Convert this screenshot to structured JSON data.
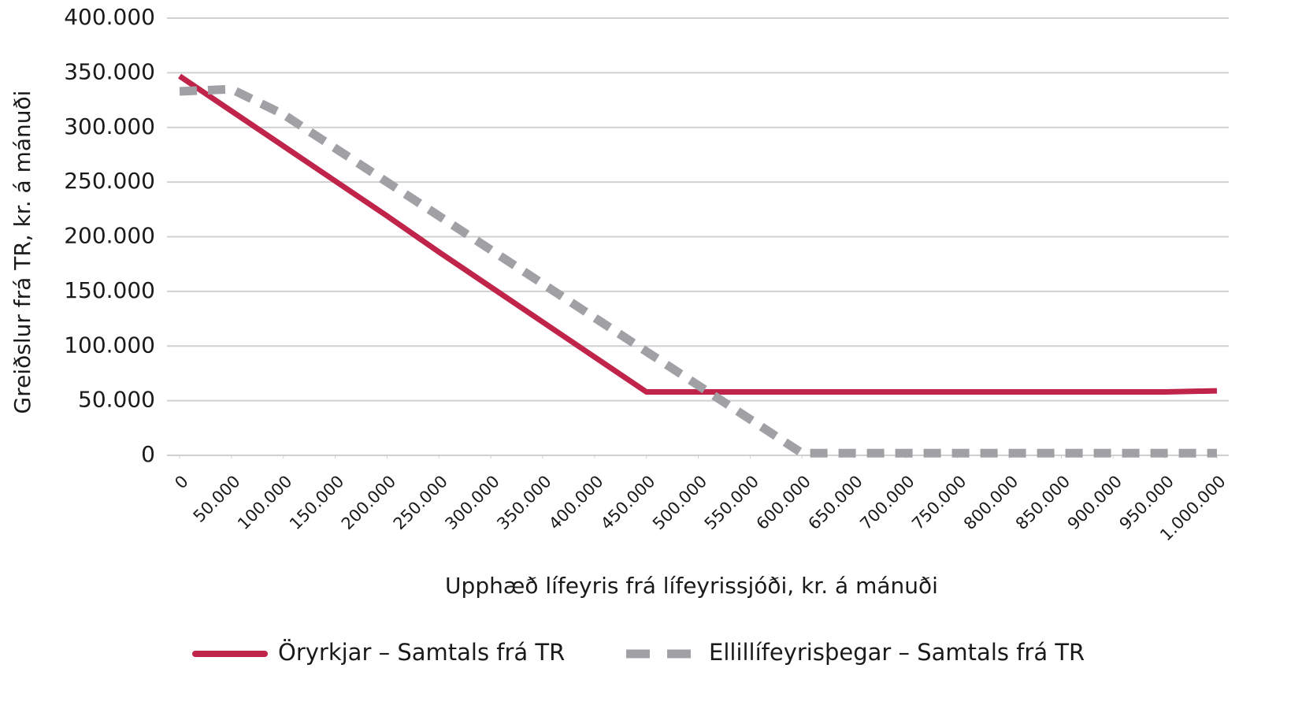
{
  "chart_data": {
    "type": "line",
    "xlabel": "Upphæð lífeyris frá lífeyrissjóði, kr. á mánuði",
    "ylabel": "Greiðslur frá TR, kr. á mánuði",
    "x": [
      0,
      50000,
      100000,
      150000,
      200000,
      250000,
      300000,
      350000,
      400000,
      450000,
      500000,
      550000,
      600000,
      650000,
      700000,
      750000,
      800000,
      850000,
      900000,
      950000,
      1000000
    ],
    "series": [
      {
        "name": "Öryrkjar – Samtals frá TR",
        "color": "#c0244a",
        "dash": false,
        "values": [
          347000,
          315000,
          283000,
          251000,
          219000,
          186000,
          154000,
          122000,
          90000,
          58000,
          58000,
          58000,
          58000,
          58000,
          58000,
          58000,
          58000,
          58000,
          58000,
          58000,
          59000
        ]
      },
      {
        "name": "Ellillífeyrisþegar – Samtals frá TR",
        "color": "#a0a0a5",
        "dash": true,
        "values": [
          333000,
          335000,
          312000,
          281000,
          250000,
          219000,
          188000,
          157000,
          126000,
          95000,
          64000,
          33000,
          2000,
          2000,
          2000,
          2000,
          2000,
          2000,
          2000,
          2000,
          2000
        ]
      }
    ],
    "xlim": [
      0,
      1000000
    ],
    "xticks": [
      0,
      {
        "value": 50000,
        "label": "50.000"
      },
      {
        "value": 100000,
        "label": "100.000"
      },
      {
        "value": 150000,
        "label": "150.000"
      },
      {
        "value": 200000,
        "label": "200.000"
      },
      {
        "value": 250000,
        "label": "250.000"
      },
      {
        "value": 300000,
        "label": "300.000"
      },
      {
        "value": 350000,
        "label": "350.000"
      },
      {
        "value": 400000,
        "label": "400.000"
      },
      {
        "value": 450000,
        "label": "450.000"
      },
      {
        "value": 500000,
        "label": "500.000"
      },
      {
        "value": 550000,
        "label": "550.000"
      },
      {
        "value": 600000,
        "label": "600.000"
      },
      {
        "value": 650000,
        "label": "650.000"
      },
      {
        "value": 700000,
        "label": "700.000"
      },
      {
        "value": 750000,
        "label": "750.000"
      },
      {
        "value": 800000,
        "label": "800.000"
      },
      {
        "value": 850000,
        "label": "850.000"
      },
      {
        "value": 900000,
        "label": "900.000"
      },
      {
        "value": 950000,
        "label": "950.000"
      },
      {
        "value": 1000000,
        "label": "1.000.000"
      }
    ],
    "ylim": [
      0,
      400000
    ],
    "yticks": [
      0,
      {
        "value": 50000,
        "label": "50.000"
      },
      {
        "value": 100000,
        "label": "100.000"
      },
      {
        "value": 150000,
        "label": "150.000"
      },
      {
        "value": 200000,
        "label": "200.000"
      },
      {
        "value": 250000,
        "label": "250.000"
      },
      {
        "value": 300000,
        "label": "300.000"
      },
      {
        "value": 350000,
        "label": "350.000"
      },
      {
        "value": 400000,
        "label": "400.000"
      }
    ],
    "grid": true,
    "legend": "bottom"
  }
}
